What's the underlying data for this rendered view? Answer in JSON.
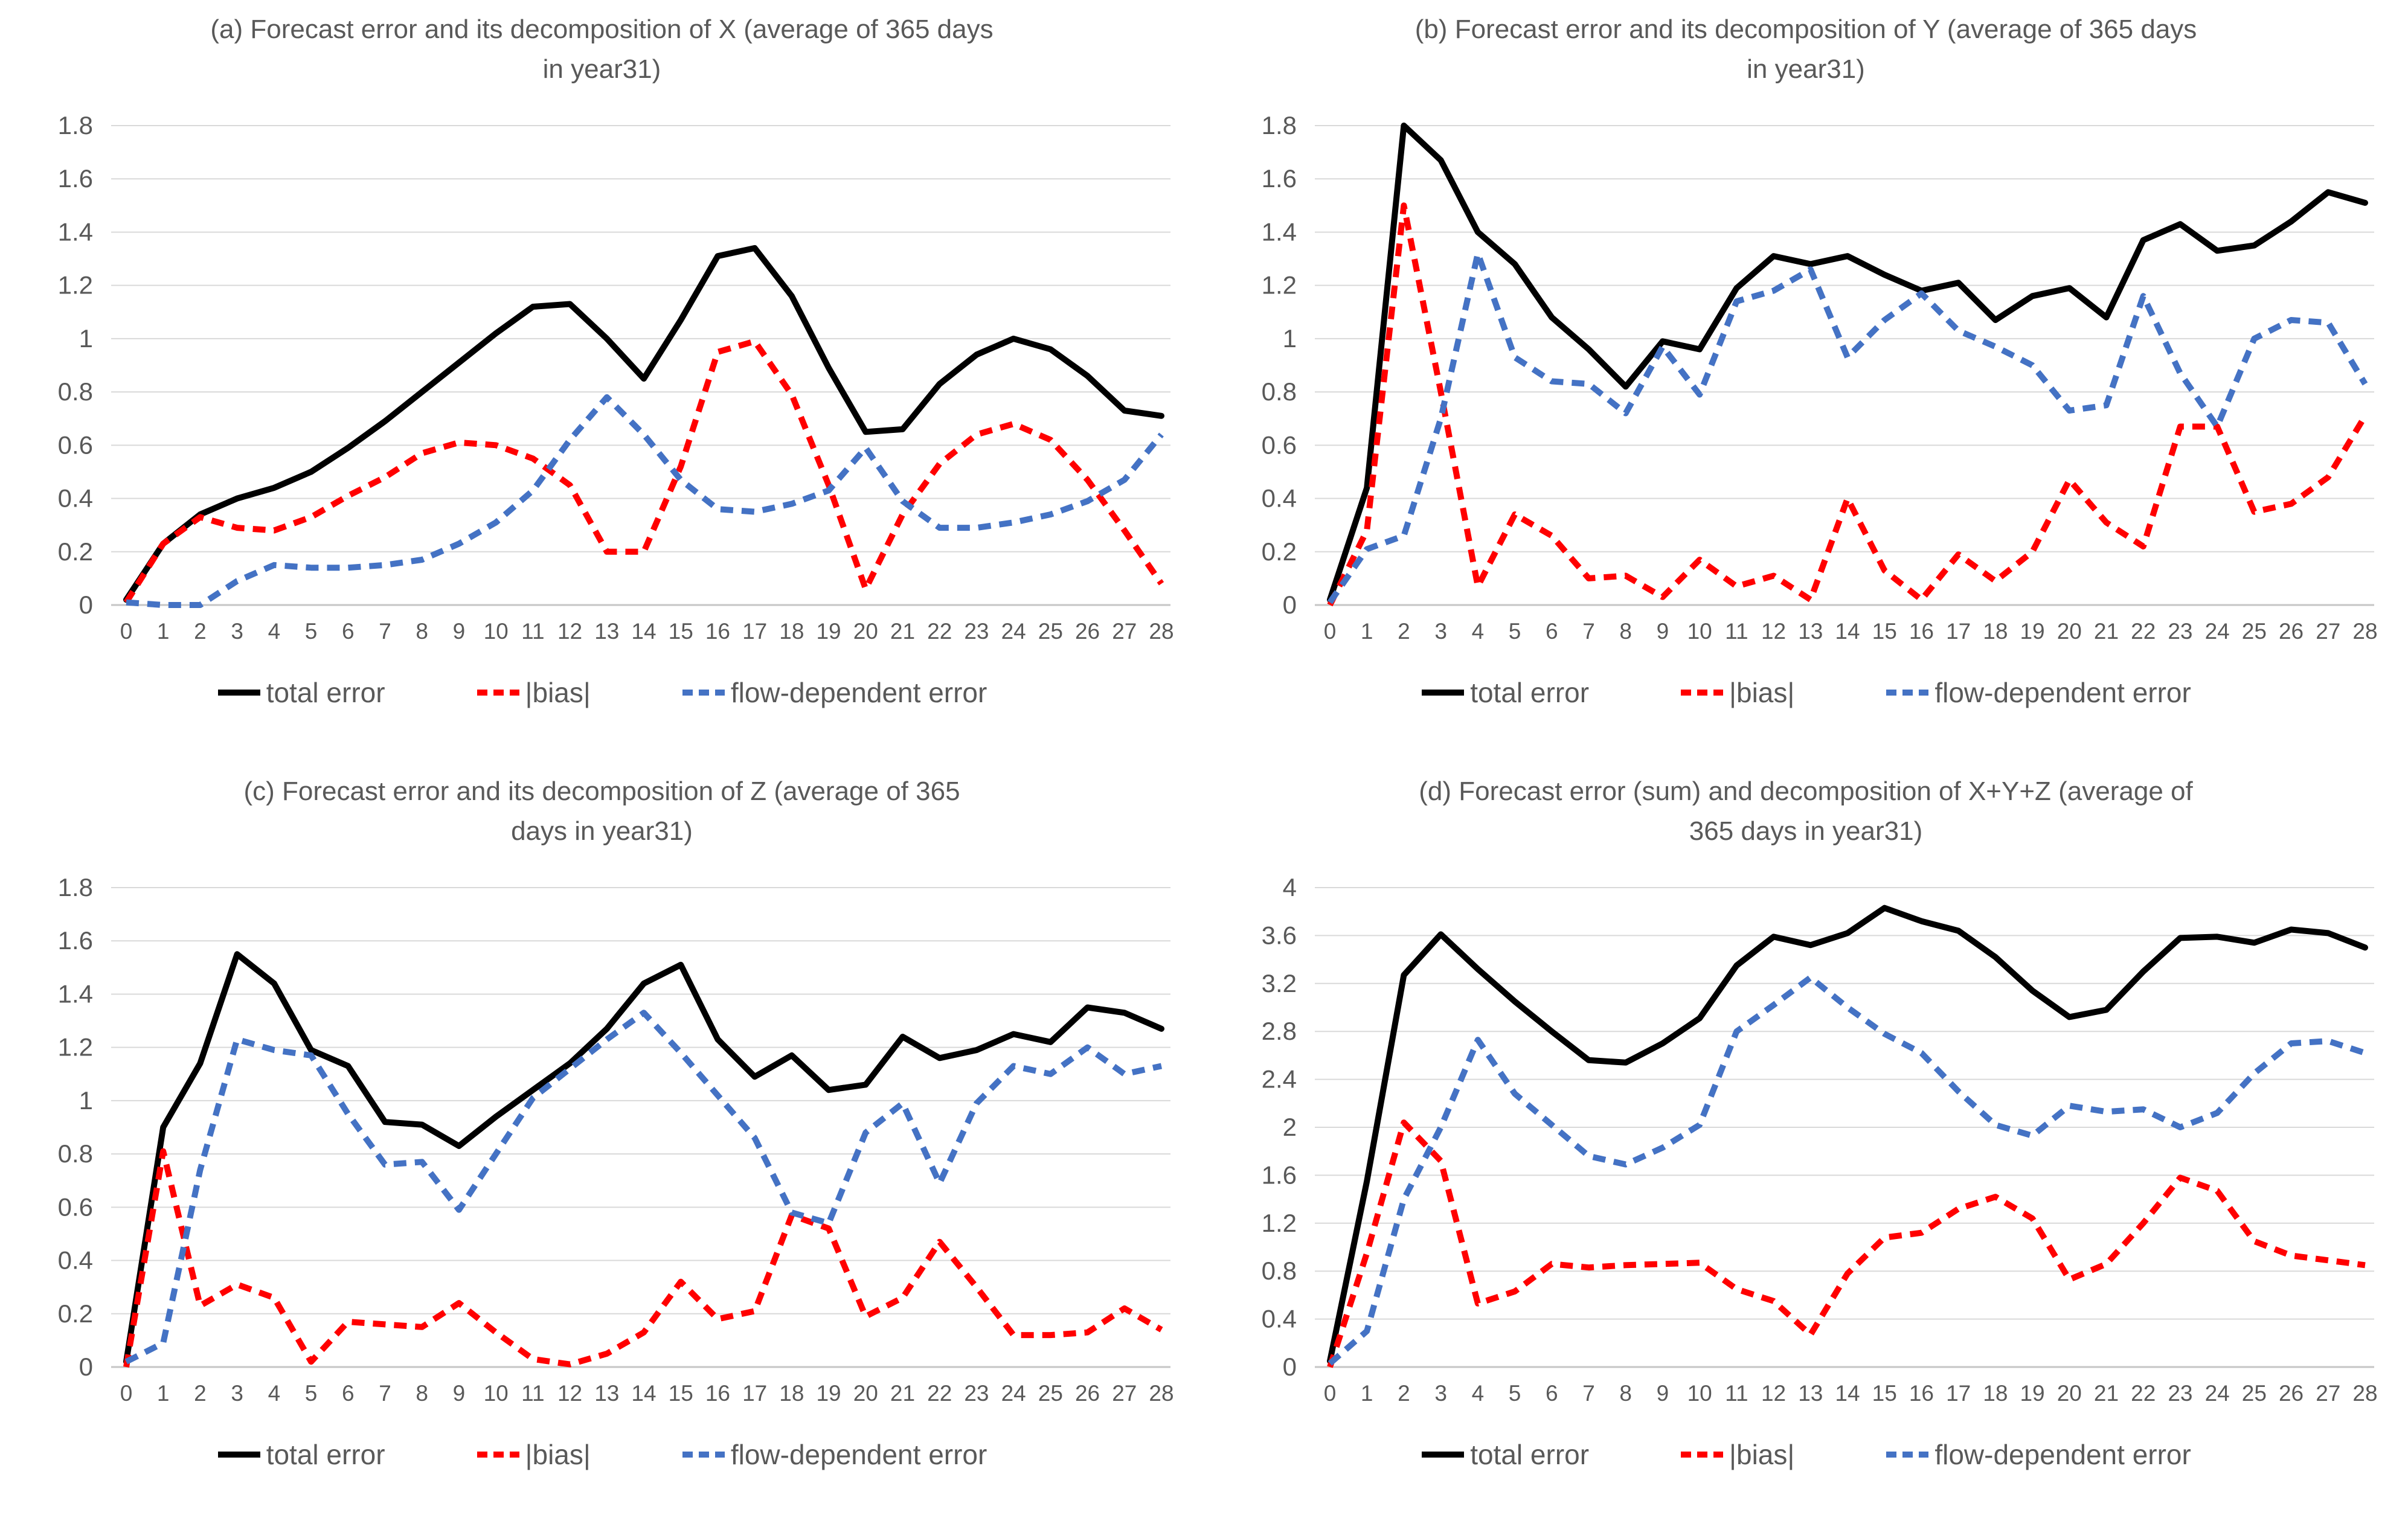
{
  "styles": {
    "background": "#FFFFFF",
    "text_color": "#595959",
    "grid_color": "#D9D9D9",
    "axis_color": "#C6C6C6",
    "total_error_color": "#000000",
    "bias_color": "#FF0000",
    "flow_dependent_color": "#4472C4"
  },
  "legend_items": [
    {
      "label": "total error",
      "color": "#000000",
      "dash": "solid"
    },
    {
      "label": "|bias|",
      "color": "#FF0000",
      "dash": "dashed"
    },
    {
      "label": "flow-dependent error",
      "color": "#4472C4",
      "dash": "dashed"
    }
  ],
  "chart_data": [
    {
      "id": "a",
      "type": "line",
      "title_line1": "(a) Forecast error and its decomposition of X (average of 365 days",
      "title_line2": "in year31)",
      "xlabel": "",
      "ylabel": "",
      "grid": true,
      "legend_position": "bottom",
      "x_categories": [
        "0",
        "1",
        "2",
        "3",
        "4",
        "5",
        "6",
        "7",
        "8",
        "9",
        "10",
        "11",
        "12",
        "13",
        "14",
        "15",
        "16",
        "17",
        "18",
        "19",
        "20",
        "21",
        "22",
        "23",
        "24",
        "25",
        "26",
        "27",
        "28"
      ],
      "ylim": [
        0,
        1.8
      ],
      "ytick_values": [
        0,
        0.2,
        0.4,
        0.6,
        0.8,
        1,
        1.2,
        1.4,
        1.6,
        1.8
      ],
      "ytick_labels": [
        "0",
        "0.2",
        "0.4",
        "0.6",
        "0.8",
        "1",
        "1.2",
        "1.4",
        "1.6",
        "1.8"
      ],
      "series": [
        {
          "name": "total error",
          "color": "#000000",
          "dash": "solid",
          "values": [
            0.02,
            0.23,
            0.34,
            0.4,
            0.44,
            0.5,
            0.59,
            0.69,
            0.8,
            0.91,
            1.02,
            1.12,
            1.13,
            1.0,
            0.85,
            1.07,
            1.31,
            1.34,
            1.16,
            0.89,
            0.65,
            0.66,
            0.83,
            0.94,
            1.0,
            0.96,
            0.86,
            0.73,
            0.71
          ]
        },
        {
          "name": "|bias|",
          "color": "#FF0000",
          "dash": "dashed",
          "values": [
            0.01,
            0.23,
            0.33,
            0.29,
            0.28,
            0.33,
            0.41,
            0.48,
            0.57,
            0.61,
            0.6,
            0.55,
            0.45,
            0.2,
            0.2,
            0.52,
            0.95,
            0.99,
            0.79,
            0.45,
            0.06,
            0.34,
            0.53,
            0.64,
            0.68,
            0.62,
            0.47,
            0.28,
            0.08
          ]
        },
        {
          "name": "flow-dependent error",
          "color": "#4472C4",
          "dash": "dashed",
          "values": [
            0.01,
            0.0,
            0.0,
            0.09,
            0.15,
            0.14,
            0.14,
            0.15,
            0.17,
            0.23,
            0.31,
            0.43,
            0.62,
            0.78,
            0.64,
            0.47,
            0.36,
            0.35,
            0.38,
            0.43,
            0.59,
            0.39,
            0.29,
            0.29,
            0.31,
            0.34,
            0.39,
            0.47,
            0.64
          ]
        }
      ]
    },
    {
      "id": "b",
      "type": "line",
      "title_line1": "(b) Forecast error and its decomposition of Y (average of 365 days",
      "title_line2": "in year31)",
      "xlabel": "",
      "ylabel": "",
      "grid": true,
      "legend_position": "bottom",
      "x_categories": [
        "0",
        "1",
        "2",
        "3",
        "4",
        "5",
        "6",
        "7",
        "8",
        "9",
        "10",
        "11",
        "12",
        "13",
        "14",
        "15",
        "16",
        "17",
        "18",
        "19",
        "20",
        "21",
        "22",
        "23",
        "24",
        "25",
        "26",
        "27",
        "28"
      ],
      "ylim": [
        0,
        1.8
      ],
      "ytick_values": [
        0,
        0.2,
        0.4,
        0.6,
        0.8,
        1,
        1.2,
        1.4,
        1.6,
        1.8
      ],
      "ytick_labels": [
        "0",
        "0.2",
        "0.4",
        "0.6",
        "0.8",
        "1",
        "1.2",
        "1.4",
        "1.6",
        "1.8"
      ],
      "series": [
        {
          "name": "total error",
          "color": "#000000",
          "dash": "solid",
          "values": [
            0.02,
            0.44,
            1.8,
            1.67,
            1.4,
            1.28,
            1.08,
            0.96,
            0.82,
            0.99,
            0.96,
            1.19,
            1.31,
            1.28,
            1.31,
            1.24,
            1.18,
            1.21,
            1.07,
            1.16,
            1.19,
            1.08,
            1.37,
            1.43,
            1.33,
            1.35,
            1.44,
            1.55,
            1.51
          ]
        },
        {
          "name": "|bias|",
          "color": "#FF0000",
          "dash": "dashed",
          "values": [
            0.0,
            0.28,
            1.5,
            0.8,
            0.07,
            0.34,
            0.26,
            0.1,
            0.11,
            0.03,
            0.17,
            0.07,
            0.11,
            0.02,
            0.4,
            0.13,
            0.02,
            0.19,
            0.09,
            0.2,
            0.47,
            0.31,
            0.22,
            0.67,
            0.67,
            0.35,
            0.38,
            0.48,
            0.71
          ]
        },
        {
          "name": "flow-dependent error",
          "color": "#4472C4",
          "dash": "dashed",
          "values": [
            0.01,
            0.21,
            0.26,
            0.7,
            1.32,
            0.93,
            0.84,
            0.83,
            0.72,
            0.97,
            0.79,
            1.14,
            1.18,
            1.26,
            0.93,
            1.07,
            1.17,
            1.03,
            0.97,
            0.9,
            0.73,
            0.75,
            1.16,
            0.87,
            0.67,
            1.0,
            1.07,
            1.06,
            0.83
          ]
        }
      ]
    },
    {
      "id": "c",
      "type": "line",
      "title_line1": "(c) Forecast error and its decomposition of Z (average of 365",
      "title_line2": "days in year31)",
      "xlabel": "",
      "ylabel": "",
      "grid": true,
      "legend_position": "bottom",
      "x_categories": [
        "0",
        "1",
        "2",
        "3",
        "4",
        "5",
        "6",
        "7",
        "8",
        "9",
        "10",
        "11",
        "12",
        "13",
        "14",
        "15",
        "16",
        "17",
        "18",
        "19",
        "20",
        "21",
        "22",
        "23",
        "24",
        "25",
        "26",
        "27",
        "28"
      ],
      "ylim": [
        0,
        1.8
      ],
      "ytick_values": [
        0,
        0.2,
        0.4,
        0.6,
        0.8,
        1,
        1.2,
        1.4,
        1.6,
        1.8
      ],
      "ytick_labels": [
        "0",
        "0.2",
        "0.4",
        "0.6",
        "0.8",
        "1",
        "1.2",
        "1.4",
        "1.6",
        "1.8"
      ],
      "series": [
        {
          "name": "total error",
          "color": "#000000",
          "dash": "solid",
          "values": [
            0.02,
            0.9,
            1.14,
            1.55,
            1.44,
            1.19,
            1.13,
            0.92,
            0.91,
            0.83,
            0.94,
            1.04,
            1.14,
            1.27,
            1.44,
            1.51,
            1.23,
            1.09,
            1.17,
            1.04,
            1.06,
            1.24,
            1.16,
            1.19,
            1.25,
            1.22,
            1.35,
            1.33,
            1.27
          ]
        },
        {
          "name": "|bias|",
          "color": "#FF0000",
          "dash": "dashed",
          "values": [
            0.0,
            0.81,
            0.23,
            0.31,
            0.26,
            0.02,
            0.17,
            0.16,
            0.15,
            0.24,
            0.13,
            0.03,
            0.01,
            0.05,
            0.13,
            0.32,
            0.18,
            0.21,
            0.57,
            0.52,
            0.19,
            0.26,
            0.47,
            0.3,
            0.12,
            0.12,
            0.13,
            0.22,
            0.14
          ]
        },
        {
          "name": "flow-dependent error",
          "color": "#4472C4",
          "dash": "dashed",
          "values": [
            0.02,
            0.09,
            0.74,
            1.23,
            1.19,
            1.17,
            0.95,
            0.76,
            0.77,
            0.59,
            0.8,
            1.01,
            1.12,
            1.23,
            1.33,
            1.18,
            1.02,
            0.86,
            0.58,
            0.54,
            0.88,
            0.99,
            0.69,
            0.99,
            1.13,
            1.1,
            1.2,
            1.1,
            1.13
          ]
        }
      ]
    },
    {
      "id": "d",
      "type": "line",
      "title_line1": "(d) Forecast error (sum) and decomposition of X+Y+Z (average of",
      "title_line2": "365 days in year31)",
      "xlabel": "",
      "ylabel": "",
      "grid": true,
      "legend_position": "bottom",
      "x_categories": [
        "0",
        "1",
        "2",
        "3",
        "4",
        "5",
        "6",
        "7",
        "8",
        "9",
        "10",
        "11",
        "12",
        "13",
        "14",
        "15",
        "16",
        "17",
        "18",
        "19",
        "20",
        "21",
        "22",
        "23",
        "24",
        "25",
        "26",
        "27",
        "28"
      ],
      "ylim": [
        0,
        4
      ],
      "ytick_values": [
        0,
        0.4,
        0.8,
        1.2,
        1.6,
        2,
        2.4,
        2.8,
        3.2,
        3.6,
        4
      ],
      "ytick_labels": [
        "0",
        "0.4",
        "0.8",
        "1.2",
        "1.6",
        "2",
        "2.4",
        "2.8",
        "3.2",
        "3.6",
        "4"
      ],
      "series": [
        {
          "name": "total error",
          "color": "#000000",
          "dash": "solid",
          "values": [
            0.05,
            1.55,
            3.27,
            3.61,
            3.32,
            3.05,
            2.8,
            2.56,
            2.54,
            2.7,
            2.91,
            3.35,
            3.59,
            3.52,
            3.62,
            3.83,
            3.72,
            3.64,
            3.42,
            3.14,
            2.92,
            2.98,
            3.3,
            3.58,
            3.59,
            3.54,
            3.65,
            3.62,
            3.5
          ]
        },
        {
          "name": "|bias|",
          "color": "#FF0000",
          "dash": "dashed",
          "values": [
            0.0,
            0.95,
            2.04,
            1.72,
            0.53,
            0.63,
            0.86,
            0.83,
            0.85,
            0.86,
            0.87,
            0.65,
            0.55,
            0.27,
            0.78,
            1.08,
            1.12,
            1.32,
            1.42,
            1.24,
            0.73,
            0.86,
            1.2,
            1.58,
            1.47,
            1.05,
            0.93,
            0.89,
            0.85
          ]
        },
        {
          "name": "flow-dependent error",
          "color": "#4472C4",
          "dash": "dashed",
          "values": [
            0.03,
            0.3,
            1.4,
            2.0,
            2.73,
            2.28,
            2.02,
            1.76,
            1.69,
            1.83,
            2.02,
            2.8,
            3.02,
            3.25,
            3.0,
            2.78,
            2.62,
            2.3,
            2.02,
            1.93,
            2.18,
            2.13,
            2.15,
            2.0,
            2.12,
            2.45,
            2.7,
            2.72,
            2.62
          ]
        }
      ]
    }
  ]
}
